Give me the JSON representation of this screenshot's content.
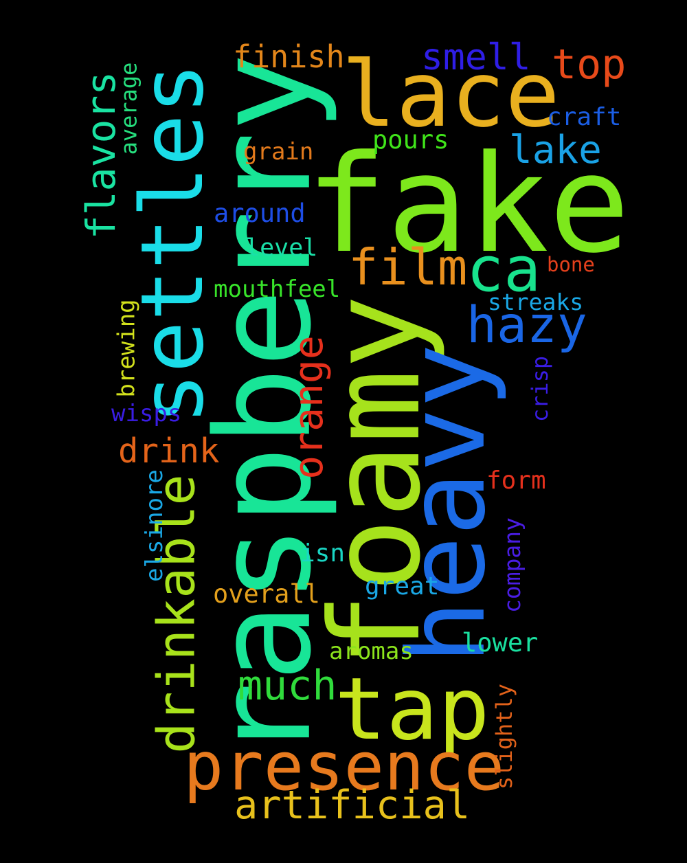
{
  "background": "#000000",
  "words": [
    {
      "text": "fake",
      "color": "#7de81c"
    },
    {
      "text": "raspberry",
      "color": "#18e597"
    },
    {
      "text": "foamy",
      "color": "#a6e21c"
    },
    {
      "text": "heavy",
      "color": "#1b6ae6"
    },
    {
      "text": "settles",
      "color": "#1adde8"
    },
    {
      "text": "lace",
      "color": "#e9b01f"
    },
    {
      "text": "tap",
      "color": "#c8e51d"
    },
    {
      "text": "presence",
      "color": "#e77a1e"
    },
    {
      "text": "film",
      "color": "#e9901e"
    },
    {
      "text": "ca",
      "color": "#18e28d"
    },
    {
      "text": "hazy",
      "color": "#1a66e6"
    },
    {
      "text": "drinkable",
      "color": "#a8e21b"
    },
    {
      "text": "flavors",
      "color": "#1ae3a2"
    },
    {
      "text": "orange",
      "color": "#e6301c"
    },
    {
      "text": "much",
      "color": "#30dc3c"
    },
    {
      "text": "artificial",
      "color": "#e8c11c"
    },
    {
      "text": "top",
      "color": "#e84a1a"
    },
    {
      "text": "smell",
      "color": "#2f1ee6"
    },
    {
      "text": "lake",
      "color": "#1aa2e6"
    },
    {
      "text": "drink",
      "color": "#e4641a"
    },
    {
      "text": "finish",
      "color": "#e3861a"
    },
    {
      "text": "craft",
      "color": "#1b5ee5"
    },
    {
      "text": "pours",
      "color": "#40e41a"
    },
    {
      "text": "grain",
      "color": "#e37a1c"
    },
    {
      "text": "around",
      "color": "#1e4ee6"
    },
    {
      "text": "level",
      "color": "#1ae0a8"
    },
    {
      "text": "bone",
      "color": "#e4401c"
    },
    {
      "text": "mouthfeel",
      "color": "#38e42a"
    },
    {
      "text": "streaks",
      "color": "#1aa8e6"
    },
    {
      "text": "average",
      "color": "#26df7e"
    },
    {
      "text": "brewing",
      "color": "#d2e11c"
    },
    {
      "text": "wisps",
      "color": "#3a1de4"
    },
    {
      "text": "crisp",
      "color": "#3a1de4"
    },
    {
      "text": "form",
      "color": "#e4301c"
    },
    {
      "text": "elsinore",
      "color": "#1aa8e6"
    },
    {
      "text": "company",
      "color": "#4a1de4"
    },
    {
      "text": "isn",
      "color": "#1ad6c4"
    },
    {
      "text": "overall",
      "color": "#e3a01c"
    },
    {
      "text": "great",
      "color": "#1aa8e6"
    },
    {
      "text": "aromas",
      "color": "#8ce41c"
    },
    {
      "text": "lower",
      "color": "#1ae0a0"
    },
    {
      "text": "slightly",
      "color": "#e3621a"
    }
  ]
}
